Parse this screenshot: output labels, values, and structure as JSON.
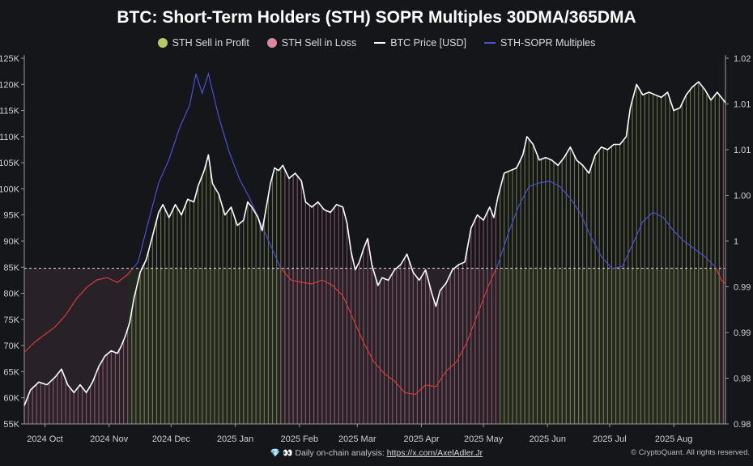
{
  "chart_data": {
    "type": "bar",
    "title": "BTC: Short-Term Holders (STH) SOPR Multiples 30DMA/365DMA",
    "legend": [
      {
        "label": "STH Sell in Profit",
        "color": "#b5c96a",
        "marker": "dot"
      },
      {
        "label": "STH Sell in Loss",
        "color": "#d88aa0",
        "marker": "dot"
      },
      {
        "label": "BTC Price [USD]",
        "color": "#ffffff",
        "marker": "line"
      },
      {
        "label": "STH-SOPR Multiples",
        "color": "#4b4fd6",
        "marker": "line"
      }
    ],
    "legend_placement": "top-center",
    "x_tick_labels": [
      "2024 Oct",
      "2024 Nov",
      "2024 Dec",
      "2025 Jan",
      "2025 Feb",
      "2025 Mar",
      "2025 Apr",
      "2025 May",
      "2025 Jun",
      "2025 Jul",
      "2025 Aug"
    ],
    "y_left": {
      "tick_labels": [
        "55K",
        "60K",
        "65K",
        "70K",
        "75K",
        "80K",
        "85K",
        "90K",
        "95K",
        "100K",
        "105K",
        "110K",
        "115K",
        "120K",
        "125K"
      ],
      "range": [
        55000,
        125000
      ]
    },
    "y_right": {
      "tick_labels": [
        "0.98",
        "0.98",
        "0.99",
        "0.99",
        "1",
        "1.00",
        "1.01",
        "1.01",
        "1.02"
      ],
      "range": [
        0.98,
        1.027
      ],
      "reference_line": 1
    },
    "x_range": [
      "2024-09-21",
      "2025-08-26"
    ],
    "grid": false,
    "btc_price": [
      [
        "2024-09-21",
        58500
      ],
      [
        "2024-09-24",
        61500
      ],
      [
        "2024-09-28",
        63000
      ],
      [
        "2024-10-02",
        62500
      ],
      [
        "2024-10-06",
        64000
      ],
      [
        "2024-10-09",
        65500
      ],
      [
        "2024-10-12",
        62500
      ],
      [
        "2024-10-15",
        61000
      ],
      [
        "2024-10-18",
        62500
      ],
      [
        "2024-10-21",
        61000
      ],
      [
        "2024-10-24",
        63000
      ],
      [
        "2024-10-27",
        66000
      ],
      [
        "2024-10-30",
        68000
      ],
      [
        "2024-11-02",
        69000
      ],
      [
        "2024-11-05",
        68500
      ],
      [
        "2024-11-07",
        70000
      ],
      [
        "2024-11-09",
        72000
      ],
      [
        "2024-11-11",
        74500
      ],
      [
        "2024-11-13",
        79000
      ],
      [
        "2024-11-16",
        84000
      ],
      [
        "2024-11-19",
        86500
      ],
      [
        "2024-11-22",
        91000
      ],
      [
        "2024-11-25",
        95500
      ],
      [
        "2024-11-27",
        97000
      ],
      [
        "2024-11-30",
        94500
      ],
      [
        "2024-12-03",
        97000
      ],
      [
        "2024-12-06",
        95000
      ],
      [
        "2024-12-09",
        98000
      ],
      [
        "2024-12-12",
        97500
      ],
      [
        "2024-12-14",
        100500
      ],
      [
        "2024-12-17",
        103500
      ],
      [
        "2024-12-19",
        106500
      ],
      [
        "2024-12-21",
        101000
      ],
      [
        "2024-12-24",
        99000
      ],
      [
        "2024-12-27",
        95000
      ],
      [
        "2024-12-30",
        96500
      ],
      [
        "2025-01-02",
        93000
      ],
      [
        "2025-01-05",
        94000
      ],
      [
        "2025-01-07",
        97500
      ],
      [
        "2025-01-09",
        96500
      ],
      [
        "2025-01-12",
        94500
      ],
      [
        "2025-01-14",
        92000
      ],
      [
        "2025-01-16",
        96500
      ],
      [
        "2025-01-18",
        101000
      ],
      [
        "2025-01-20",
        104000
      ],
      [
        "2025-01-22",
        103500
      ],
      [
        "2025-01-24",
        104500
      ],
      [
        "2025-01-27",
        102000
      ],
      [
        "2025-01-30",
        103000
      ],
      [
        "2025-02-02",
        101500
      ],
      [
        "2025-02-04",
        97500
      ],
      [
        "2025-02-07",
        96500
      ],
      [
        "2025-02-10",
        97500
      ],
      [
        "2025-02-13",
        96000
      ],
      [
        "2025-02-16",
        95500
      ],
      [
        "2025-02-19",
        97000
      ],
      [
        "2025-02-22",
        96500
      ],
      [
        "2025-02-24",
        93500
      ],
      [
        "2025-02-26",
        88000
      ],
      [
        "2025-02-28",
        84500
      ],
      [
        "2025-03-02",
        86000
      ],
      [
        "2025-03-04",
        88500
      ],
      [
        "2025-03-06",
        90500
      ],
      [
        "2025-03-08",
        85500
      ],
      [
        "2025-03-11",
        81500
      ],
      [
        "2025-03-13",
        83000
      ],
      [
        "2025-03-16",
        82500
      ],
      [
        "2025-03-19",
        84500
      ],
      [
        "2025-03-22",
        85500
      ],
      [
        "2025-03-25",
        87500
      ],
      [
        "2025-03-28",
        84000
      ],
      [
        "2025-03-31",
        82500
      ],
      [
        "2025-04-03",
        84500
      ],
      [
        "2025-04-06",
        80000
      ],
      [
        "2025-04-08",
        77500
      ],
      [
        "2025-04-10",
        80500
      ],
      [
        "2025-04-13",
        82000
      ],
      [
        "2025-04-16",
        84500
      ],
      [
        "2025-04-19",
        85500
      ],
      [
        "2025-04-22",
        86000
      ],
      [
        "2025-04-25",
        92500
      ],
      [
        "2025-04-28",
        95000
      ],
      [
        "2025-05-01",
        94000
      ],
      [
        "2025-05-04",
        96500
      ],
      [
        "2025-05-06",
        94500
      ],
      [
        "2025-05-08",
        98500
      ],
      [
        "2025-05-11",
        103000
      ],
      [
        "2025-05-14",
        103500
      ],
      [
        "2025-05-17",
        104000
      ],
      [
        "2025-05-20",
        106500
      ],
      [
        "2025-05-22",
        110000
      ],
      [
        "2025-05-25",
        108500
      ],
      [
        "2025-05-28",
        105500
      ],
      [
        "2025-05-31",
        106000
      ],
      [
        "2025-06-03",
        105500
      ],
      [
        "2025-06-06",
        104500
      ],
      [
        "2025-06-09",
        106000
      ],
      [
        "2025-06-12",
        108000
      ],
      [
        "2025-06-15",
        105500
      ],
      [
        "2025-06-18",
        104500
      ],
      [
        "2025-06-21",
        103000
      ],
      [
        "2025-06-24",
        106500
      ],
      [
        "2025-06-27",
        108000
      ],
      [
        "2025-06-30",
        107500
      ],
      [
        "2025-07-03",
        108500
      ],
      [
        "2025-07-06",
        108500
      ],
      [
        "2025-07-09",
        110000
      ],
      [
        "2025-07-11",
        115500
      ],
      [
        "2025-07-14",
        120000
      ],
      [
        "2025-07-17",
        118000
      ],
      [
        "2025-07-20",
        118500
      ],
      [
        "2025-07-23",
        118000
      ],
      [
        "2025-07-26",
        117500
      ],
      [
        "2025-07-29",
        118500
      ],
      [
        "2025-08-01",
        115000
      ],
      [
        "2025-08-04",
        115500
      ],
      [
        "2025-08-07",
        118000
      ],
      [
        "2025-08-10",
        119500
      ],
      [
        "2025-08-13",
        120500
      ],
      [
        "2025-08-16",
        119000
      ],
      [
        "2025-08-19",
        117000
      ],
      [
        "2025-08-22",
        118500
      ],
      [
        "2025-08-26",
        116500
      ]
    ],
    "sth_sopr_multiples": [
      [
        "2024-09-21",
        0.9892
      ],
      [
        "2024-09-26",
        0.9905
      ],
      [
        "2024-10-01",
        0.9915
      ],
      [
        "2024-10-06",
        0.9925
      ],
      [
        "2024-10-11",
        0.994
      ],
      [
        "2024-10-16",
        0.996
      ],
      [
        "2024-10-21",
        0.9975
      ],
      [
        "2024-10-26",
        0.9985
      ],
      [
        "2024-10-31",
        0.9988
      ],
      [
        "2024-11-05",
        0.9982
      ],
      [
        "2024-11-10",
        0.9992
      ],
      [
        "2024-11-15",
        1.0008
      ],
      [
        "2024-11-20",
        1.006
      ],
      [
        "2024-11-25",
        1.011
      ],
      [
        "2024-11-30",
        1.014
      ],
      [
        "2024-12-05",
        1.018
      ],
      [
        "2024-12-10",
        1.021
      ],
      [
        "2024-12-13",
        1.025
      ],
      [
        "2024-12-16",
        1.0225
      ],
      [
        "2024-12-19",
        1.025
      ],
      [
        "2024-12-24",
        1.0195
      ],
      [
        "2024-12-29",
        1.015
      ],
      [
        "2025-01-03",
        1.0115
      ],
      [
        "2025-01-08",
        1.009
      ],
      [
        "2025-01-13",
        1.006
      ],
      [
        "2025-01-18",
        1.003
      ],
      [
        "2025-01-23",
        1.0
      ],
      [
        "2025-01-28",
        0.9985
      ],
      [
        "2025-02-02",
        0.9982
      ],
      [
        "2025-02-07",
        0.998
      ],
      [
        "2025-02-12",
        0.9985
      ],
      [
        "2025-02-17",
        0.9978
      ],
      [
        "2025-02-22",
        0.9965
      ],
      [
        "2025-02-27",
        0.9935
      ],
      [
        "2025-03-04",
        0.9905
      ],
      [
        "2025-03-09",
        0.988
      ],
      [
        "2025-03-14",
        0.9865
      ],
      [
        "2025-03-19",
        0.9855
      ],
      [
        "2025-03-24",
        0.984
      ],
      [
        "2025-03-29",
        0.9838
      ],
      [
        "2025-04-03",
        0.985
      ],
      [
        "2025-04-08",
        0.9848
      ],
      [
        "2025-04-13",
        0.9868
      ],
      [
        "2025-04-18",
        0.988
      ],
      [
        "2025-04-23",
        0.9905
      ],
      [
        "2025-04-28",
        0.994
      ],
      [
        "2025-05-03",
        0.9975
      ],
      [
        "2025-05-08",
        1.0005
      ],
      [
        "2025-05-13",
        1.0045
      ],
      [
        "2025-05-18",
        1.008
      ],
      [
        "2025-05-23",
        1.0105
      ],
      [
        "2025-05-28",
        1.011
      ],
      [
        "2025-06-02",
        1.0112
      ],
      [
        "2025-06-07",
        1.0105
      ],
      [
        "2025-06-12",
        1.009
      ],
      [
        "2025-06-17",
        1.007
      ],
      [
        "2025-06-22",
        1.004
      ],
      [
        "2025-06-27",
        1.0015
      ],
      [
        "2025-07-02",
        1.0
      ],
      [
        "2025-07-07",
        1.0002
      ],
      [
        "2025-07-12",
        1.003
      ],
      [
        "2025-07-17",
        1.006
      ],
      [
        "2025-07-22",
        1.0072
      ],
      [
        "2025-07-27",
        1.0065
      ],
      [
        "2025-08-01",
        1.0048
      ],
      [
        "2025-08-06",
        1.0035
      ],
      [
        "2025-08-11",
        1.0025
      ],
      [
        "2025-08-16",
        1.0015
      ],
      [
        "2025-08-21",
        1.0002
      ],
      [
        "2025-08-24",
        0.9985
      ],
      [
        "2025-08-26",
        0.998
      ]
    ],
    "regimes": [
      {
        "from": "2024-09-21",
        "to": "2024-11-10",
        "state": "STH Sell in Loss"
      },
      {
        "from": "2024-11-10",
        "to": "2025-01-23",
        "state": "STH Sell in Profit"
      },
      {
        "from": "2025-01-23",
        "to": "2025-05-08",
        "state": "STH Sell in Loss"
      },
      {
        "from": "2025-05-08",
        "to": "2025-08-23",
        "state": "STH Sell in Profit"
      },
      {
        "from": "2025-08-23",
        "to": "2025-08-26",
        "state": "STH Sell in Loss"
      }
    ]
  },
  "footer": {
    "emojis": "💎 👀",
    "analysis_text": "Daily on-chain analysis:",
    "analysis_link": "https://x.com/AxelAdler.Jr",
    "copyright": "© CryptoQuant. All rights reserved."
  }
}
